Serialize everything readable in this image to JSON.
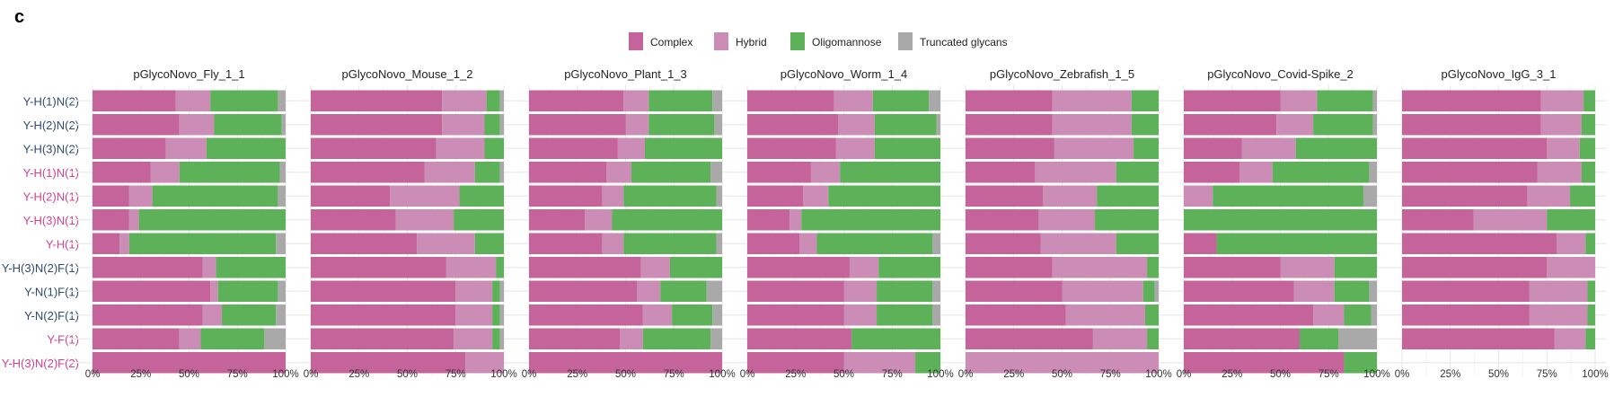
{
  "panel_label": "c",
  "chart_data": {
    "type": "bar",
    "orientation": "horizontal",
    "stacked": true,
    "normalized": true,
    "legend": {
      "placement": "top-center",
      "entries": [
        "Complex",
        "Hybrid",
        "Oligomannose",
        "Truncated glycans"
      ],
      "colors": [
        "#c4649b",
        "#cb8cb5",
        "#5db158",
        "#a9a9a9"
      ]
    },
    "categories": [
      "Y-H(1)N(2)",
      "Y-H(2)N(2)",
      "Y-H(3)N(2)",
      "Y-H(1)N(1)",
      "Y-H(2)N(1)",
      "Y-H(3)N(1)",
      "Y-H(1)",
      "Y-H(3)N(2)F(1)",
      "Y-N(1)F(1)",
      "Y-N(2)F(1)",
      "Y-F(1)",
      "Y-H(3)N(2)F(2)"
    ],
    "category_colors": [
      "#2f4b6e",
      "#2f4b6e",
      "#2f4b6e",
      "#d4418e",
      "#d4418e",
      "#d4418e",
      "#d4418e",
      "#2f4b6e",
      "#2f4b6e",
      "#2f4b6e",
      "#d4418e",
      "#d4418e"
    ],
    "xlim": [
      0,
      100
    ],
    "x_ticks": [
      "0%",
      "25%",
      "50%",
      "75%",
      "100%"
    ],
    "grid": true,
    "panels": [
      {
        "title": "pGlycoNovo_Fly_1_1",
        "values": [
          [
            43,
            18,
            35,
            4
          ],
          [
            45,
            18,
            35,
            2
          ],
          [
            38,
            21,
            41,
            0
          ],
          [
            30,
            15,
            52,
            3
          ],
          [
            19,
            12,
            65,
            4
          ],
          [
            19,
            5,
            76,
            0
          ],
          [
            14,
            5,
            76,
            5
          ],
          [
            57,
            7,
            36,
            0
          ],
          [
            61,
            4,
            31,
            4
          ],
          [
            57,
            10,
            28,
            5
          ],
          [
            45,
            11,
            33,
            11
          ],
          [
            100,
            0,
            0,
            0
          ]
        ]
      },
      {
        "title": "pGlycoNovo_Mouse_1_2",
        "values": [
          [
            68,
            23,
            7,
            2
          ],
          [
            68,
            22,
            8,
            2
          ],
          [
            65,
            25,
            10,
            0
          ],
          [
            59,
            26,
            13,
            2
          ],
          [
            41,
            36,
            23,
            0
          ],
          [
            44,
            30,
            26,
            0
          ],
          [
            55,
            30,
            15,
            0
          ],
          [
            70,
            26,
            4,
            0
          ],
          [
            75,
            19,
            4,
            2
          ],
          [
            75,
            19,
            4,
            2
          ],
          [
            74,
            20,
            4,
            2
          ],
          [
            80,
            20,
            0,
            0
          ]
        ]
      },
      {
        "title": "pGlycoNovo_Plant_1_3",
        "values": [
          [
            49,
            13,
            33,
            5
          ],
          [
            50,
            12,
            34,
            4
          ],
          [
            46,
            14,
            40,
            0
          ],
          [
            40,
            13,
            41,
            6
          ],
          [
            38,
            11,
            48,
            3
          ],
          [
            29,
            14,
            57,
            0
          ],
          [
            38,
            11,
            48,
            3
          ],
          [
            58,
            15,
            27,
            0
          ],
          [
            56,
            12,
            24,
            8
          ],
          [
            59,
            15,
            21,
            5
          ],
          [
            47,
            12,
            35,
            6
          ],
          [
            100,
            0,
            0,
            0
          ]
        ]
      },
      {
        "title": "pGlycoNovo_Worm_1_4",
        "values": [
          [
            45,
            20,
            29,
            6
          ],
          [
            47,
            19,
            32,
            2
          ],
          [
            46,
            20,
            34,
            0
          ],
          [
            33,
            15,
            52,
            0
          ],
          [
            29,
            13,
            58,
            0
          ],
          [
            22,
            6,
            72,
            0
          ],
          [
            27,
            9,
            60,
            4
          ],
          [
            53,
            15,
            32,
            0
          ],
          [
            50,
            17,
            29,
            4
          ],
          [
            50,
            17,
            29,
            4
          ],
          [
            54,
            0,
            46,
            0
          ],
          [
            50,
            37,
            13,
            0
          ]
        ]
      },
      {
        "title": "pGlycoNovo_Zebrafish_1_5",
        "values": [
          [
            45,
            41,
            14,
            0
          ],
          [
            45,
            41,
            14,
            0
          ],
          [
            46,
            41,
            13,
            0
          ],
          [
            36,
            42,
            22,
            0
          ],
          [
            40,
            28,
            32,
            0
          ],
          [
            38,
            29,
            33,
            0
          ],
          [
            39,
            39,
            22,
            0
          ],
          [
            45,
            49,
            6,
            0
          ],
          [
            50,
            42,
            6,
            2
          ],
          [
            52,
            41,
            7,
            0
          ],
          [
            66,
            28,
            6,
            0
          ],
          [
            0,
            100,
            0,
            0
          ]
        ]
      },
      {
        "title": "pGlycoNovo_Covid-Spike_2",
        "values": [
          [
            50,
            19,
            29,
            2
          ],
          [
            48,
            19,
            31,
            2
          ],
          [
            30,
            28,
            42,
            0
          ],
          [
            29,
            17,
            50,
            4
          ],
          [
            0,
            15,
            78,
            7
          ],
          [
            0,
            0,
            100,
            0
          ],
          [
            17,
            0,
            83,
            0
          ],
          [
            50,
            28,
            22,
            0
          ],
          [
            57,
            21,
            18,
            4
          ],
          [
            67,
            16,
            14,
            3
          ],
          [
            60,
            0,
            20,
            20
          ],
          [
            83,
            0,
            17,
            0
          ]
        ]
      },
      {
        "title": "pGlycoNovo_IgG_3_1",
        "values": [
          [
            72,
            22,
            6,
            0
          ],
          [
            72,
            21,
            7,
            0
          ],
          [
            75,
            17,
            8,
            0
          ],
          [
            70,
            23,
            7,
            0
          ],
          [
            65,
            22,
            13,
            0
          ],
          [
            37,
            38,
            25,
            0
          ],
          [
            80,
            15,
            5,
            0
          ],
          [
            75,
            25,
            0,
            0
          ],
          [
            66,
            30,
            4,
            0
          ],
          [
            66,
            30,
            4,
            0
          ],
          [
            79,
            16,
            5,
            0
          ],
          null
        ]
      }
    ]
  }
}
